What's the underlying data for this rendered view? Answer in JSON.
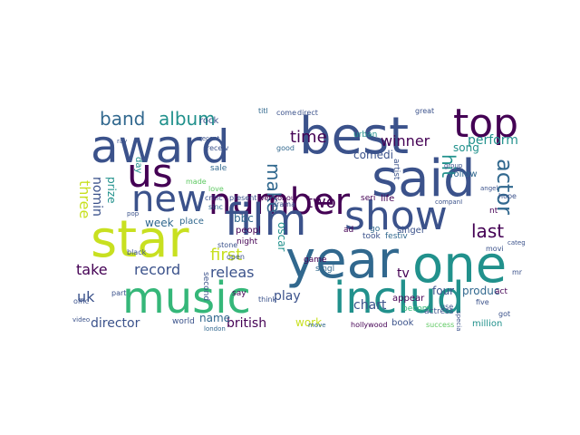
{
  "background": "#ffffff",
  "palette": {
    "p1": "#440154",
    "p2": "#3b528b",
    "p3": "#21918c",
    "p4": "#5ec962",
    "p5": "#c8e020",
    "p6": "#31688e",
    "p7": "#35b779"
  },
  "words": [
    {
      "text": "best",
      "color": "p2"
    },
    {
      "text": "award",
      "color": "p2"
    },
    {
      "text": "top",
      "color": "p1"
    },
    {
      "text": "said",
      "color": "p2"
    },
    {
      "text": "us",
      "color": "p1"
    },
    {
      "text": "number",
      "color": "p1"
    },
    {
      "text": "film",
      "color": "p2"
    },
    {
      "text": "show",
      "color": "p2"
    },
    {
      "text": "new",
      "color": "p2"
    },
    {
      "text": "star",
      "color": "p5"
    },
    {
      "text": "year",
      "color": "p6"
    },
    {
      "text": "one",
      "color": "p3"
    },
    {
      "text": "music",
      "color": "p7"
    },
    {
      "text": "includ",
      "color": "p3"
    },
    {
      "text": "band",
      "color": "p6"
    },
    {
      "text": "album",
      "color": "p3"
    },
    {
      "text": "make",
      "color": "p6"
    },
    {
      "text": "hit",
      "color": "p3"
    },
    {
      "text": "actor",
      "color": "p6"
    },
    {
      "text": "time",
      "color": "p1"
    },
    {
      "text": "two",
      "color": "p1"
    },
    {
      "text": "first",
      "color": "p5"
    },
    {
      "text": "last",
      "color": "p1"
    },
    {
      "text": "three",
      "color": "p5"
    },
    {
      "text": "nomin",
      "color": "p2"
    },
    {
      "text": "prize",
      "color": "p3"
    },
    {
      "text": "perform",
      "color": "p3"
    },
    {
      "text": "winner",
      "color": "p1"
    },
    {
      "text": "comedi",
      "color": "p2"
    },
    {
      "text": "song",
      "color": "p3"
    },
    {
      "text": "take",
      "color": "p1"
    },
    {
      "text": "record",
      "color": "p2"
    },
    {
      "text": "releas",
      "color": "p2"
    },
    {
      "text": "uk",
      "color": "p2"
    },
    {
      "text": "play",
      "color": "p2"
    },
    {
      "text": "chart",
      "color": "p2"
    },
    {
      "text": "tv",
      "color": "p1"
    },
    {
      "text": "director",
      "color": "p2"
    },
    {
      "text": "british",
      "color": "p1"
    },
    {
      "text": "work",
      "color": "p5"
    },
    {
      "text": "name",
      "color": "p6"
    },
    {
      "text": "bbc",
      "color": "p6"
    },
    {
      "text": "week",
      "color": "p6"
    },
    {
      "text": "oscar",
      "color": "p3"
    },
    {
      "text": "four",
      "color": "p2"
    },
    {
      "text": "produc",
      "color": "p6"
    },
    {
      "text": "book",
      "color": "p2"
    },
    {
      "text": "million",
      "color": "p3"
    },
    {
      "text": "appear",
      "color": "p1"
    },
    {
      "text": "singer",
      "color": "p2"
    },
    {
      "text": "follow",
      "color": "p6"
    },
    {
      "text": "life",
      "color": "p1"
    },
    {
      "text": "took",
      "color": "p2"
    },
    {
      "text": "festiv",
      "color": "p6"
    },
    {
      "text": "place",
      "color": "p6"
    },
    {
      "text": "peopl",
      "color": "p1"
    },
    {
      "text": "night",
      "color": "p1"
    },
    {
      "text": "game",
      "color": "p1"
    },
    {
      "text": "singl",
      "color": "p6"
    },
    {
      "text": "seri",
      "color": "p1"
    },
    {
      "text": "rock",
      "color": "p2"
    },
    {
      "text": "sale",
      "color": "p6"
    },
    {
      "text": "day",
      "color": "p3"
    },
    {
      "text": "say",
      "color": "p1"
    },
    {
      "text": "world",
      "color": "p2"
    },
    {
      "text": "becom",
      "color": "p7"
    },
    {
      "text": "artist",
      "color": "p2"
    },
    {
      "text": "urban",
      "color": "p3"
    },
    {
      "text": "actress",
      "color": "p2"
    },
    {
      "text": "drama",
      "color": "p2"
    },
    {
      "text": "critic",
      "color": "p2"
    },
    {
      "text": "present",
      "color": "p2"
    },
    {
      "text": "well",
      "color": "p1"
    },
    {
      "text": "honour",
      "color": "p1"
    },
    {
      "text": "love",
      "color": "p4"
    },
    {
      "text": "made",
      "color": "p4"
    },
    {
      "text": "second",
      "color": "p2"
    },
    {
      "text": "think",
      "color": "p2"
    },
    {
      "text": "success",
      "color": "p4"
    },
    {
      "text": "hollywood",
      "color": "p1"
    },
    {
      "text": "movi",
      "color": "p2"
    },
    {
      "text": "come",
      "color": "p2"
    },
    {
      "text": "direct",
      "color": "p2"
    },
    {
      "text": "great",
      "color": "p2"
    },
    {
      "text": "good",
      "color": "p6"
    },
    {
      "text": "receiv",
      "color": "p2"
    },
    {
      "text": "titl",
      "color": "p6"
    },
    {
      "text": "sinc",
      "color": "p6"
    },
    {
      "text": "stone",
      "color": "p2"
    },
    {
      "text": "london",
      "color": "p6"
    },
    {
      "text": "black",
      "color": "p2"
    },
    {
      "text": "part",
      "color": "p2"
    },
    {
      "text": "offic",
      "color": "p2"
    },
    {
      "text": "video",
      "color": "p2"
    },
    {
      "text": "open",
      "color": "p2"
    },
    {
      "text": "hope",
      "color": "p2"
    },
    {
      "text": "angel",
      "color": "p2"
    },
    {
      "text": "group",
      "color": "p2"
    },
    {
      "text": "companI",
      "color": "p2"
    },
    {
      "text": "act",
      "color": "p1"
    },
    {
      "text": "five",
      "color": "p2"
    },
    {
      "text": "got",
      "color": "p2"
    },
    {
      "text": "mr",
      "color": "p2"
    },
    {
      "text": "use",
      "color": "p2"
    },
    {
      "text": "special",
      "color": "p2"
    },
    {
      "text": "move",
      "color": "p6"
    },
    {
      "text": "categori",
      "color": "p2"
    },
    {
      "text": "ad",
      "color": "p1"
    },
    {
      "text": "nt",
      "color": "p1"
    },
    {
      "text": "go",
      "color": "p6"
    },
    {
      "text": "pop",
      "color": "p2"
    },
    {
      "text": "ray",
      "color": "p2"
    },
    {
      "text": "vote",
      "color": "p2"
    },
    {
      "text": "recent",
      "color": "p2"
    }
  ]
}
